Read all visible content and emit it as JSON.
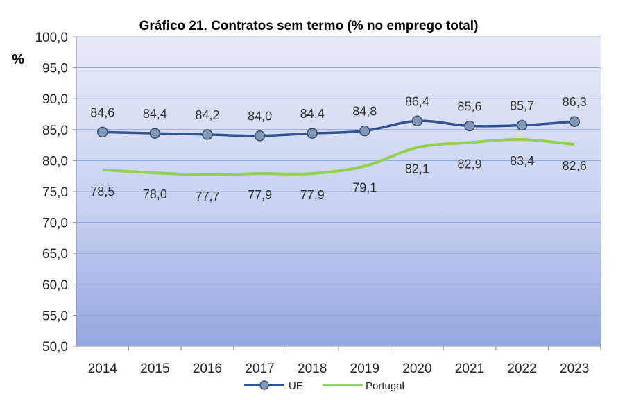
{
  "chart_data": {
    "type": "line",
    "title": "Gráfico 21. Contratos sem termo (% no emprego total)",
    "ylabel": "%",
    "xlabel": "",
    "ylim": [
      50,
      100
    ],
    "yticks": [
      "50,0",
      "55,0",
      "60,0",
      "65,0",
      "70,0",
      "75,0",
      "80,0",
      "85,0",
      "90,0",
      "95,0",
      "100,0"
    ],
    "grid": true,
    "legend": "bottom",
    "categories": [
      "2014",
      "2015",
      "2016",
      "2017",
      "2018",
      "2019",
      "2020",
      "2021",
      "2022",
      "2023"
    ],
    "series": [
      {
        "name": "UE",
        "color": "#2f5597",
        "marker": "#8497b0",
        "values": [
          84.6,
          84.4,
          84.2,
          84.0,
          84.4,
          84.8,
          86.4,
          85.6,
          85.7,
          86.3
        ],
        "labels": [
          "84,6",
          "84,4",
          "84,2",
          "84,0",
          "84,4",
          "84,8",
          "86,4",
          "85,6",
          "85,7",
          "86,3"
        ]
      },
      {
        "name": "Portugal",
        "color": "#92d050",
        "values": [
          78.5,
          78.0,
          77.7,
          77.9,
          77.9,
          79.1,
          82.1,
          82.9,
          83.4,
          82.6
        ],
        "labels": [
          "78,5",
          "78,0",
          "77,7",
          "77,9",
          "77,9",
          "79,1",
          "82,1",
          "82,9",
          "83,4",
          "82,6"
        ]
      }
    ]
  }
}
